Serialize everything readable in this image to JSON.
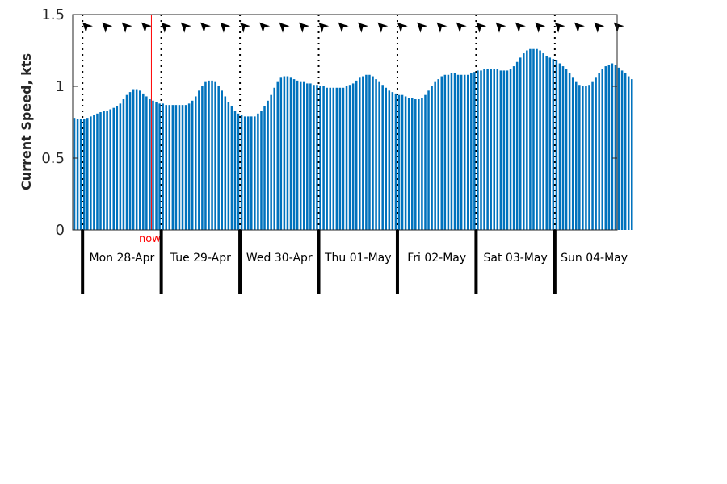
{
  "chart_data": {
    "type": "bar",
    "ylabel": "Current Speed, kts",
    "ylim": [
      0,
      1.5
    ],
    "yticks": [
      {
        "value": 0,
        "label": "0"
      },
      {
        "value": 0.5,
        "label": "0.5"
      },
      {
        "value": 1,
        "label": "1"
      },
      {
        "value": 1.5,
        "label": "1.5"
      }
    ],
    "xlim": [
      "2025-04-27T21:00",
      "2025-05-04T19:00"
    ],
    "x_start": "2025-04-27T21:00",
    "x_step_hours": 1,
    "bar_color": "#0072BD",
    "grid": false,
    "legend": "none",
    "days": [
      {
        "label": "Mon 28-Apr",
        "start": "2025-04-28T00:00"
      },
      {
        "label": "Tue 29-Apr",
        "start": "2025-04-29T00:00"
      },
      {
        "label": "Wed 30-Apr",
        "start": "2025-04-30T00:00"
      },
      {
        "label": "Thu 01-May",
        "start": "2025-05-01T00:00"
      },
      {
        "label": "Fri 02-May",
        "start": "2025-05-02T00:00"
      },
      {
        "label": "Sat 03-May",
        "start": "2025-05-03T00:00"
      },
      {
        "label": "Sun 04-May",
        "start": "2025-05-04T00:00"
      }
    ],
    "now": {
      "label": "now",
      "time": "2025-04-28T21:00",
      "color": "#ff0000"
    },
    "direction_arrow_interval_hours": 6,
    "values": [
      0.78,
      0.77,
      0.77,
      0.77,
      0.78,
      0.79,
      0.8,
      0.81,
      0.82,
      0.83,
      0.83,
      0.84,
      0.85,
      0.86,
      0.88,
      0.91,
      0.94,
      0.96,
      0.98,
      0.98,
      0.97,
      0.95,
      0.93,
      0.91,
      0.9,
      0.89,
      0.88,
      0.88,
      0.87,
      0.87,
      0.87,
      0.87,
      0.87,
      0.87,
      0.87,
      0.88,
      0.9,
      0.93,
      0.97,
      1.0,
      1.03,
      1.04,
      1.04,
      1.03,
      1.0,
      0.97,
      0.93,
      0.89,
      0.86,
      0.83,
      0.81,
      0.8,
      0.79,
      0.79,
      0.79,
      0.79,
      0.81,
      0.83,
      0.86,
      0.9,
      0.94,
      0.99,
      1.03,
      1.06,
      1.07,
      1.07,
      1.06,
      1.05,
      1.04,
      1.03,
      1.03,
      1.02,
      1.02,
      1.01,
      1.01,
      1.0,
      1.0,
      0.99,
      0.99,
      0.99,
      0.99,
      0.99,
      0.99,
      1.0,
      1.01,
      1.02,
      1.04,
      1.06,
      1.07,
      1.08,
      1.08,
      1.07,
      1.05,
      1.03,
      1.01,
      0.99,
      0.97,
      0.96,
      0.95,
      0.94,
      0.94,
      0.93,
      0.92,
      0.92,
      0.91,
      0.91,
      0.92,
      0.94,
      0.97,
      1.0,
      1.03,
      1.05,
      1.07,
      1.08,
      1.08,
      1.09,
      1.09,
      1.08,
      1.08,
      1.08,
      1.08,
      1.09,
      1.1,
      1.11,
      1.11,
      1.12,
      1.12,
      1.12,
      1.12,
      1.12,
      1.11,
      1.11,
      1.11,
      1.12,
      1.14,
      1.17,
      1.2,
      1.23,
      1.25,
      1.26,
      1.26,
      1.26,
      1.25,
      1.23,
      1.21,
      1.2,
      1.19,
      1.18,
      1.16,
      1.14,
      1.12,
      1.09,
      1.06,
      1.03,
      1.01,
      1.0,
      1.0,
      1.01,
      1.03,
      1.06,
      1.09,
      1.12,
      1.14,
      1.15,
      1.16,
      1.15,
      1.13,
      1.11,
      1.09,
      1.07,
      1.05
    ]
  }
}
